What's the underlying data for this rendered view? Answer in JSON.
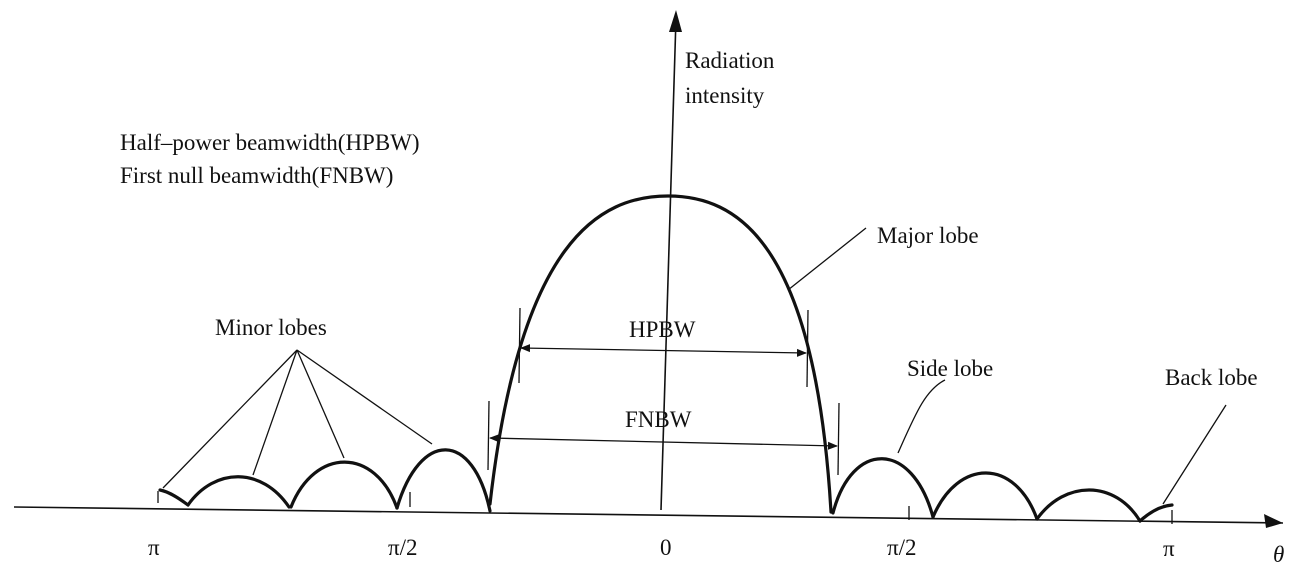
{
  "y_axis": {
    "label_line1": "Radiation",
    "label_line2": "intensity"
  },
  "x_axis": {
    "label": "θ",
    "ticks": [
      "π",
      "π/2",
      "0",
      "π/2",
      "π"
    ]
  },
  "legend": {
    "line1": "Half–power beamwidth(HPBW)",
    "line2": "First null beamwidth(FNBW)"
  },
  "annotations": {
    "major_lobe": "Major lobe",
    "minor_lobes": "Minor lobes",
    "side_lobe": "Side lobe",
    "back_lobe": "Back lobe",
    "hpbw": "HPBW",
    "fnbw": "FNBW"
  }
}
